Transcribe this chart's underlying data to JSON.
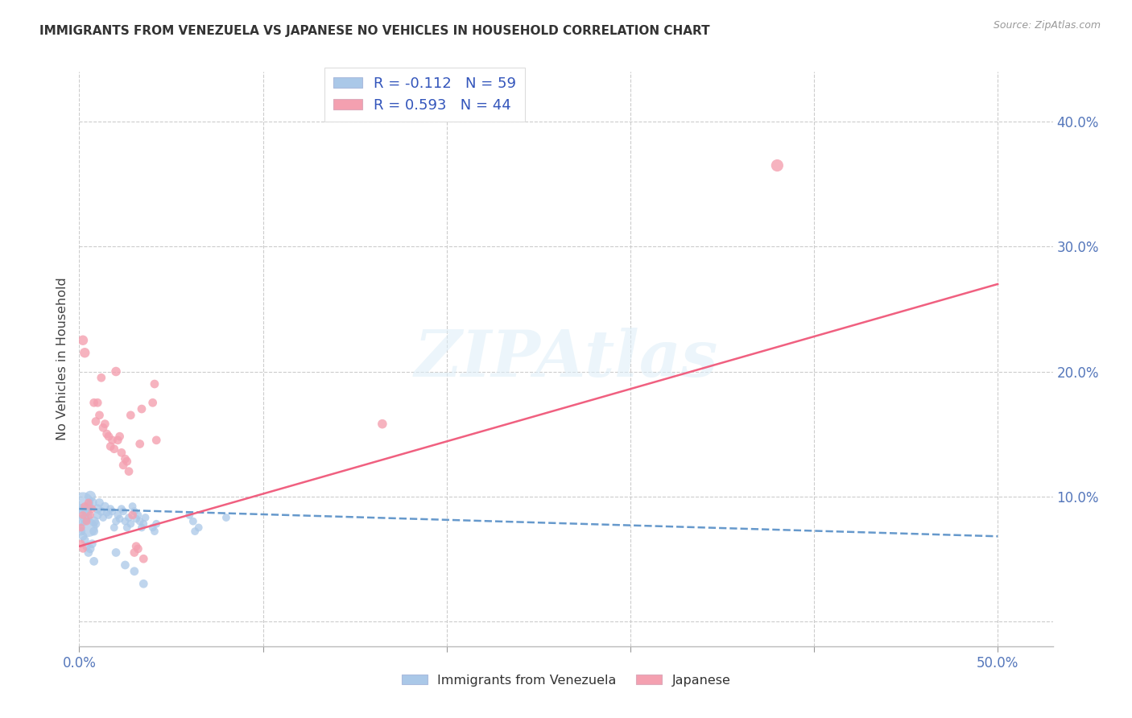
{
  "title": "IMMIGRANTS FROM VENEZUELA VS JAPANESE NO VEHICLES IN HOUSEHOLD CORRELATION CHART",
  "source": "Source: ZipAtlas.com",
  "ylabel": "No Vehicles in Household",
  "yticks": [
    0.0,
    0.1,
    0.2,
    0.3,
    0.4
  ],
  "ytick_labels": [
    "",
    "10.0%",
    "20.0%",
    "30.0%",
    "40.0%"
  ],
  "xticks": [
    0.0,
    0.1,
    0.2,
    0.3,
    0.4,
    0.5
  ],
  "xtick_labels": [
    "0.0%",
    "",
    "",
    "",
    "",
    "50.0%"
  ],
  "xlim": [
    0.0,
    0.53
  ],
  "ylim": [
    -0.02,
    0.44
  ],
  "legend_line1": "R = -0.112   N = 59",
  "legend_line2": "R = 0.593   N = 44",
  "watermark": "ZIPAtlas",
  "blue_color": "#aac8e8",
  "pink_color": "#f4a0b0",
  "blue_line_color": "#6699cc",
  "pink_line_color": "#f06080",
  "blue_scatter_x": [
    0.001,
    0.002,
    0.003,
    0.004,
    0.005,
    0.005,
    0.006,
    0.007,
    0.008,
    0.008,
    0.009,
    0.01,
    0.01,
    0.011,
    0.012,
    0.013,
    0.014,
    0.015,
    0.016,
    0.017,
    0.018,
    0.019,
    0.02,
    0.021,
    0.022,
    0.023,
    0.024,
    0.025,
    0.026,
    0.027,
    0.028,
    0.029,
    0.03,
    0.031,
    0.032,
    0.033,
    0.034,
    0.035,
    0.036,
    0.04,
    0.041,
    0.042,
    0.06,
    0.062,
    0.063,
    0.065,
    0.08,
    0.001,
    0.002,
    0.003,
    0.004,
    0.005,
    0.006,
    0.007,
    0.008,
    0.02,
    0.025,
    0.03,
    0.035
  ],
  "blue_scatter_y": [
    0.085,
    0.095,
    0.082,
    0.088,
    0.075,
    0.092,
    0.1,
    0.095,
    0.08,
    0.072,
    0.078,
    0.09,
    0.085,
    0.095,
    0.088,
    0.083,
    0.092,
    0.087,
    0.085,
    0.09,
    0.088,
    0.075,
    0.08,
    0.085,
    0.082,
    0.09,
    0.088,
    0.08,
    0.075,
    0.083,
    0.078,
    0.092,
    0.088,
    0.082,
    0.085,
    0.08,
    0.075,
    0.078,
    0.083,
    0.075,
    0.072,
    0.078,
    0.085,
    0.08,
    0.072,
    0.075,
    0.083,
    0.072,
    0.068,
    0.065,
    0.06,
    0.055,
    0.058,
    0.062,
    0.048,
    0.055,
    0.045,
    0.04,
    0.03
  ],
  "blue_scatter_s": [
    400,
    350,
    80,
    80,
    280,
    80,
    100,
    80,
    80,
    60,
    60,
    70,
    60,
    60,
    60,
    50,
    60,
    50,
    50,
    50,
    50,
    50,
    50,
    50,
    50,
    50,
    50,
    50,
    50,
    50,
    50,
    50,
    50,
    50,
    50,
    50,
    50,
    50,
    50,
    50,
    50,
    50,
    50,
    50,
    50,
    50,
    50,
    60,
    60,
    60,
    60,
    60,
    60,
    60,
    60,
    60,
    60,
    60,
    60
  ],
  "pink_scatter_x": [
    0.001,
    0.002,
    0.003,
    0.004,
    0.005,
    0.006,
    0.007,
    0.008,
    0.009,
    0.01,
    0.011,
    0.012,
    0.013,
    0.014,
    0.015,
    0.016,
    0.017,
    0.018,
    0.019,
    0.02,
    0.021,
    0.022,
    0.023,
    0.024,
    0.025,
    0.026,
    0.027,
    0.028,
    0.029,
    0.03,
    0.031,
    0.032,
    0.033,
    0.034,
    0.035,
    0.002,
    0.003,
    0.04,
    0.041,
    0.042,
    0.38,
    0.165,
    0.001,
    0.002
  ],
  "pink_scatter_y": [
    0.075,
    0.085,
    0.092,
    0.08,
    0.095,
    0.085,
    0.09,
    0.175,
    0.16,
    0.175,
    0.165,
    0.195,
    0.155,
    0.158,
    0.15,
    0.148,
    0.14,
    0.145,
    0.138,
    0.2,
    0.145,
    0.148,
    0.135,
    0.125,
    0.13,
    0.128,
    0.12,
    0.165,
    0.085,
    0.055,
    0.06,
    0.058,
    0.142,
    0.17,
    0.05,
    0.225,
    0.215,
    0.175,
    0.19,
    0.145,
    0.365,
    0.158,
    0.062,
    0.058
  ],
  "pink_scatter_s": [
    50,
    50,
    50,
    50,
    50,
    50,
    50,
    60,
    60,
    60,
    60,
    60,
    60,
    60,
    60,
    60,
    60,
    60,
    60,
    70,
    60,
    60,
    60,
    60,
    60,
    60,
    60,
    60,
    60,
    60,
    60,
    60,
    60,
    60,
    60,
    80,
    80,
    60,
    60,
    60,
    120,
    70,
    50,
    50
  ],
  "blue_trend_x": [
    0.0,
    0.5
  ],
  "blue_trend_y": [
    0.09,
    0.068
  ],
  "pink_trend_x": [
    0.0,
    0.5
  ],
  "pink_trend_y": [
    0.06,
    0.27
  ]
}
